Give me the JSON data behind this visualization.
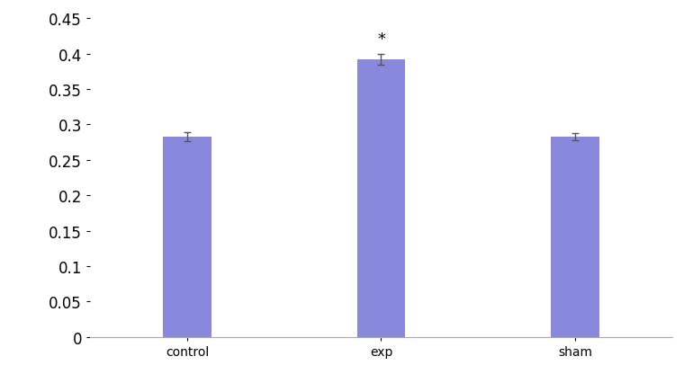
{
  "categories": [
    "control",
    "exp",
    "sham"
  ],
  "values": [
    0.283,
    0.392,
    0.283
  ],
  "errors": [
    0.006,
    0.008,
    0.005
  ],
  "bar_color": "#8888dd",
  "ylim": [
    0,
    0.45
  ],
  "yticks": [
    0,
    0.05,
    0.1,
    0.15,
    0.2,
    0.25,
    0.3,
    0.35,
    0.4,
    0.45
  ],
  "ytick_labels": [
    "0",
    "0.05",
    "0.1",
    "0.15",
    "0.2",
    "0.25",
    "0.3",
    "0.35",
    "0.4",
    "0.45"
  ],
  "bar_width": 0.25,
  "annotation_text": "*",
  "annotation_index": 1,
  "annotation_fontsize": 13,
  "tick_fontsize": 12,
  "label_fontsize": 12,
  "background_color": "#ffffff",
  "error_color": "#555555",
  "error_capsize": 3,
  "error_linewidth": 1.0,
  "xlim": [
    -0.5,
    2.5
  ]
}
